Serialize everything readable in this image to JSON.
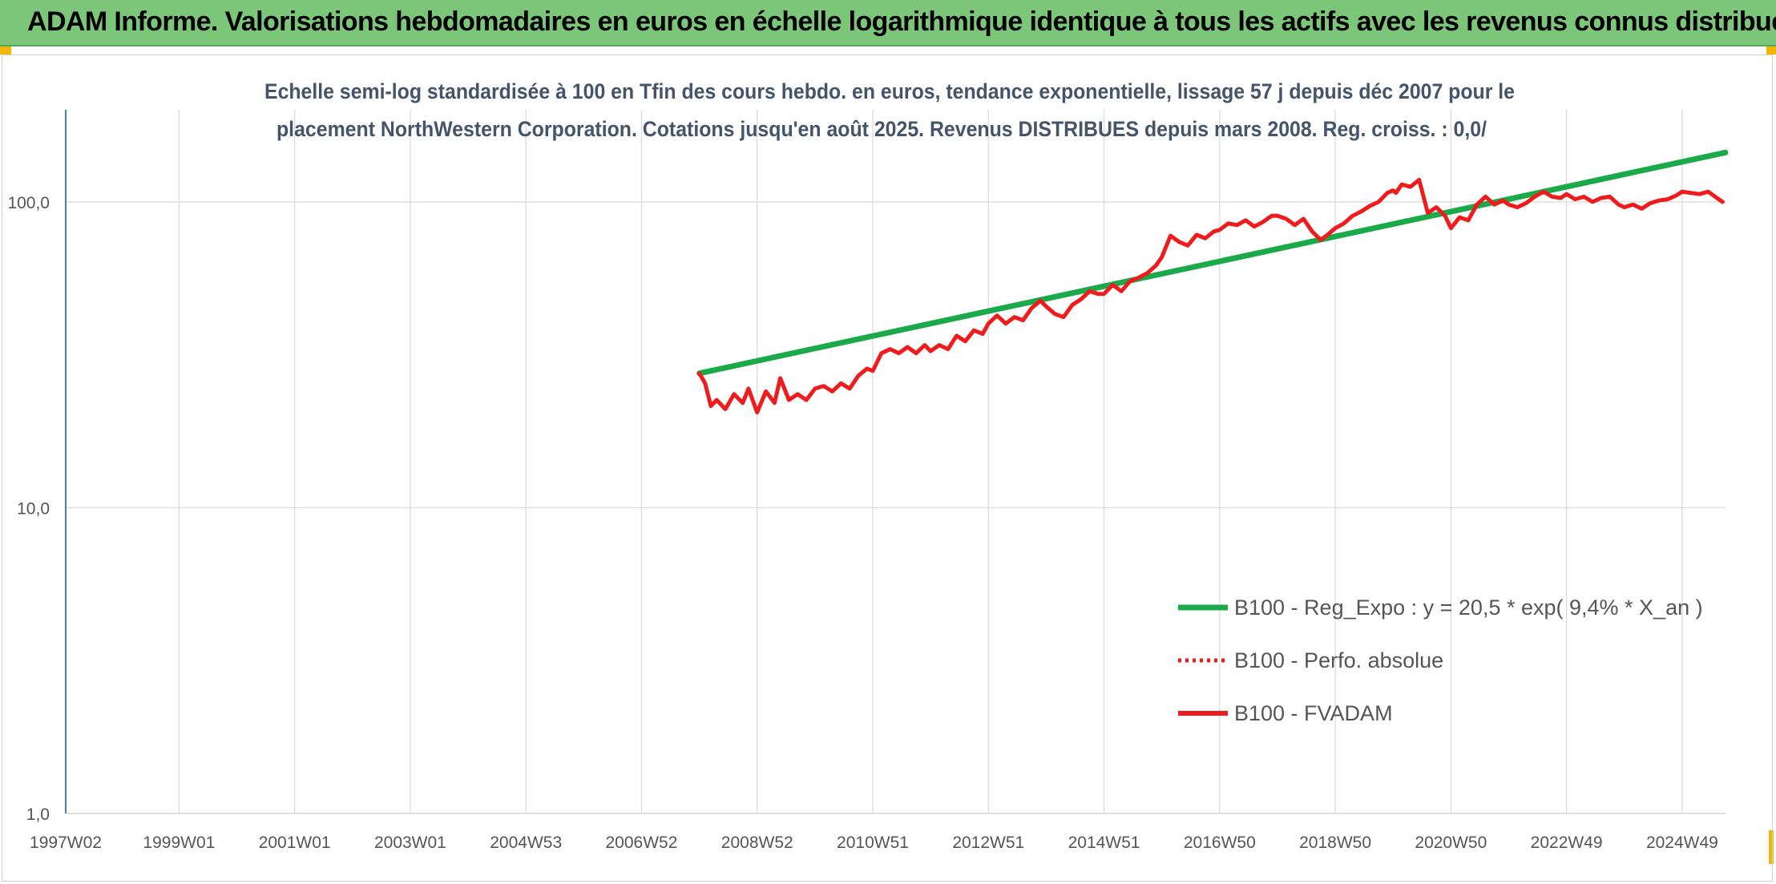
{
  "banner": {
    "title": "ADAM Informe. Valorisations hebdomadaires en euros en échelle logarithmique identique à tous les actifs avec les revenus connus distribués"
  },
  "colors": {
    "banner_bg": "#7cc67a",
    "corner_accent": "#f2b705",
    "trend": "#1aaa4a",
    "fvadam": "#ee1c1c",
    "perfo": "#ee1c1c"
  },
  "chart_data": {
    "type": "line",
    "title_lines": [
      "Echelle semi-log standardisée à 100 en Tfin des cours hebdo. en euros, tendance exponentielle, lissage 57 j depuis déc 2007 pour le",
      "placement NorthWestern Corporation. Cotations jusqu'en août 2025. Revenus DISTRIBUES depuis mars 2008. Reg. croiss. : 0,0/"
    ],
    "y_scale": "log",
    "ylim": [
      1,
      200
    ],
    "y_ticks": [
      {
        "value": 1,
        "label": "1,0"
      },
      {
        "value": 10,
        "label": "10,0"
      },
      {
        "value": 100,
        "label": "100,0"
      }
    ],
    "xlim": [
      1997.04,
      2025.75
    ],
    "x_ticks": [
      {
        "x": 1997.04,
        "label": "1997W02"
      },
      {
        "x": 1999.0,
        "label": "1999W01"
      },
      {
        "x": 2001.0,
        "label": "2001W01"
      },
      {
        "x": 2003.0,
        "label": "2003W01"
      },
      {
        "x": 2005.0,
        "label": "2004W53"
      },
      {
        "x": 2007.0,
        "label": "2006W52"
      },
      {
        "x": 2009.0,
        "label": "2008W52"
      },
      {
        "x": 2011.0,
        "label": "2010W51"
      },
      {
        "x": 2013.0,
        "label": "2012W51"
      },
      {
        "x": 2015.0,
        "label": "2014W51"
      },
      {
        "x": 2017.0,
        "label": "2016W50"
      },
      {
        "x": 2019.0,
        "label": "2018W50"
      },
      {
        "x": 2021.0,
        "label": "2020W50"
      },
      {
        "x": 2023.0,
        "label": "2022W49"
      },
      {
        "x": 2025.0,
        "label": "2024W49"
      }
    ],
    "grid": "vertical every year, horizontal at decades",
    "legend_position": "bottom-right",
    "series": [
      {
        "name": "B100 - Reg_Expo : y = 20,5 * exp( 9,4% *  X_an )",
        "style": "solid-thick",
        "x": [
          2008.0,
          2025.75
        ],
        "y": [
          27.5,
          145
        ]
      },
      {
        "name": "B100 - Perfo. absolue",
        "style": "dotted",
        "x": [],
        "y": []
      },
      {
        "name": "B100 - FVADAM",
        "style": "solid",
        "x": [
          2008.0,
          2008.1,
          2008.2,
          2008.3,
          2008.45,
          2008.6,
          2008.75,
          2008.85,
          2009.0,
          2009.15,
          2009.3,
          2009.4,
          2009.55,
          2009.7,
          2009.85,
          2010.0,
          2010.15,
          2010.3,
          2010.45,
          2010.6,
          2010.75,
          2010.9,
          2011.0,
          2011.15,
          2011.3,
          2011.45,
          2011.6,
          2011.75,
          2011.9,
          2012.0,
          2012.15,
          2012.3,
          2012.45,
          2012.6,
          2012.75,
          2012.9,
          2013.0,
          2013.15,
          2013.3,
          2013.45,
          2013.6,
          2013.75,
          2013.9,
          2014.0,
          2014.15,
          2014.3,
          2014.45,
          2014.6,
          2014.75,
          2014.9,
          2015.0,
          2015.15,
          2015.3,
          2015.45,
          2015.6,
          2015.75,
          2015.9,
          2016.0,
          2016.15,
          2016.3,
          2016.45,
          2016.6,
          2016.75,
          2016.9,
          2017.0,
          2017.15,
          2017.3,
          2017.45,
          2017.6,
          2017.75,
          2017.9,
          2018.0,
          2018.15,
          2018.3,
          2018.45,
          2018.6,
          2018.75,
          2018.9,
          2019.0,
          2019.15,
          2019.3,
          2019.45,
          2019.6,
          2019.75,
          2019.9,
          2020.0,
          2020.05,
          2020.15,
          2020.3,
          2020.45,
          2020.6,
          2020.75,
          2020.9,
          2021.0,
          2021.15,
          2021.3,
          2021.45,
          2021.6,
          2021.75,
          2021.9,
          2022.0,
          2022.15,
          2022.3,
          2022.45,
          2022.6,
          2022.75,
          2022.9,
          2023.0,
          2023.15,
          2023.3,
          2023.45,
          2023.6,
          2023.75,
          2023.9,
          2024.0,
          2024.15,
          2024.3,
          2024.45,
          2024.6,
          2024.75,
          2024.9,
          2025.0,
          2025.15,
          2025.3,
          2025.45,
          2025.6,
          2025.7
        ],
        "y": [
          27.5,
          25.5,
          21.5,
          22.5,
          21.0,
          23.5,
          22.0,
          24.5,
          20.5,
          24.0,
          22.0,
          26.5,
          22.5,
          23.5,
          22.5,
          24.5,
          25.0,
          24.0,
          25.5,
          24.5,
          27.0,
          28.5,
          28.0,
          32.0,
          33.0,
          32.0,
          33.5,
          32.0,
          34.0,
          32.5,
          34.0,
          33.0,
          36.5,
          35.0,
          38.0,
          37.0,
          40.0,
          42.5,
          40.0,
          42.0,
          41.0,
          45.0,
          47.5,
          45.5,
          43.0,
          42.0,
          46.0,
          48.0,
          51.0,
          50.0,
          50.0,
          53.5,
          51.0,
          55.0,
          56.5,
          58.5,
          62.0,
          66.0,
          77.5,
          74.0,
          72.0,
          78.0,
          76.0,
          80.0,
          81.0,
          85.0,
          84.0,
          87.0,
          83.0,
          86.0,
          90.0,
          90.0,
          88.0,
          84.0,
          88.0,
          80.0,
          75.0,
          79.0,
          82.0,
          85.0,
          90.0,
          93.0,
          97.0,
          100.0,
          107.0,
          109.0,
          107.0,
          114.0,
          112.0,
          118.0,
          92.0,
          96.0,
          90.0,
          82.0,
          89.0,
          87.0,
          98.0,
          104.0,
          98.0,
          101.0,
          98.0,
          96.0,
          99.0,
          104.0,
          108.0,
          104.0,
          103.0,
          106.0,
          102.0,
          104.0,
          100.0,
          103.0,
          104.0,
          98.0,
          96.0,
          98.0,
          95.0,
          99.0,
          101.0,
          102.0,
          105.0,
          108.0,
          107.0,
          106.0,
          108.0,
          103.0,
          100.0
        ]
      }
    ]
  }
}
